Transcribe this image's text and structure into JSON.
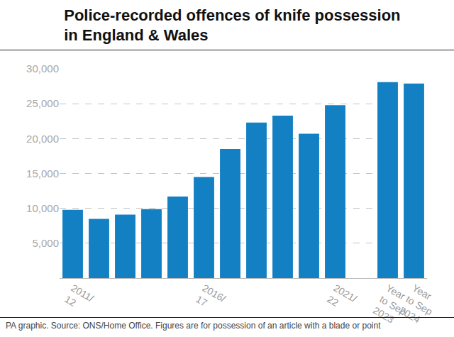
{
  "chart_data": {
    "type": "bar",
    "title": "Police-recorded offences of knife possession in England & Wales",
    "caption": "PA graphic. Source: ONS/Home Office. Figures are for possession of an article with a blade or point",
    "categories": [
      "2011/12",
      null,
      null,
      null,
      null,
      "2016/17",
      null,
      null,
      null,
      null,
      "2021/22",
      null,
      "Year to Sep 2023",
      "Year to Sep 2024"
    ],
    "values": [
      9800,
      8500,
      9100,
      9900,
      11700,
      14500,
      18500,
      22300,
      23300,
      20700,
      24800,
      null,
      28100,
      27900
    ],
    "color": "#1380c3",
    "ylim": [
      0,
      30000
    ],
    "yticks": [
      {
        "value": 5000,
        "label": "5,000"
      },
      {
        "value": 10000,
        "label": "10,000"
      },
      {
        "value": 15000,
        "label": "15,000"
      },
      {
        "value": 20000,
        "label": "20,000"
      },
      {
        "value": 25000,
        "label": "25,000"
      },
      {
        "value": 30000,
        "label": "30,000"
      }
    ],
    "grid": true
  }
}
